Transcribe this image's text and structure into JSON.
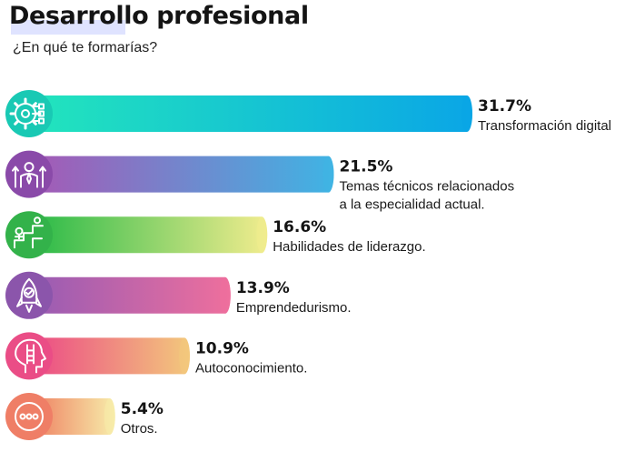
{
  "header": {
    "title": "Desarrollo profesional",
    "subtitle": "¿En qué te formarías?"
  },
  "chart_data": {
    "type": "bar",
    "orientation": "horizontal",
    "unit": "%",
    "categories": [
      "Transformación digital",
      "Temas técnicos relacionados a la especialidad actual.",
      "Habilidades de liderazgo.",
      "Emprendedurismo.",
      "Autoconocimiento.",
      "Otros."
    ],
    "label_lines": [
      [
        "Transformación digital"
      ],
      [
        "Temas técnicos relacionados",
        "a la especialidad actual."
      ],
      [
        "Habilidades de liderazgo."
      ],
      [
        "Emprendedurismo."
      ],
      [
        "Autoconocimiento."
      ],
      [
        "Otros."
      ]
    ],
    "value_labels": [
      "31.7%",
      "21.5%",
      "16.6%",
      "13.9%",
      "10.9%",
      "5.4%"
    ],
    "values": [
      31.7,
      21.5,
      16.6,
      13.9,
      10.9,
      5.4
    ],
    "xlim": [
      0,
      31.7
    ],
    "grid": false,
    "legend": "none",
    "icons": [
      "gear-circuit-icon",
      "businessman-growth-icon",
      "leadership-stairs-icon",
      "rocket-icon",
      "head-ladder-icon",
      "more-dots-icon"
    ],
    "colors": [
      {
        "icon": "#19c9b4",
        "start": "#22e4bd",
        "end": "#0aa6e6"
      },
      {
        "icon": "#8a4aa9",
        "start": "#a45ab6",
        "end": "#3fb4e4"
      },
      {
        "icon": "#33b24a",
        "start": "#2dbb49",
        "end": "#f1ec8e"
      },
      {
        "icon": "#8b55ab",
        "start": "#9a5cb3",
        "end": "#ee6f9d"
      },
      {
        "icon": "#ea4d86",
        "start": "#ec4e85",
        "end": "#f3c87c"
      },
      {
        "icon": "#ef7e66",
        "start": "#ef8666",
        "end": "#f7ecaa"
      }
    ]
  }
}
